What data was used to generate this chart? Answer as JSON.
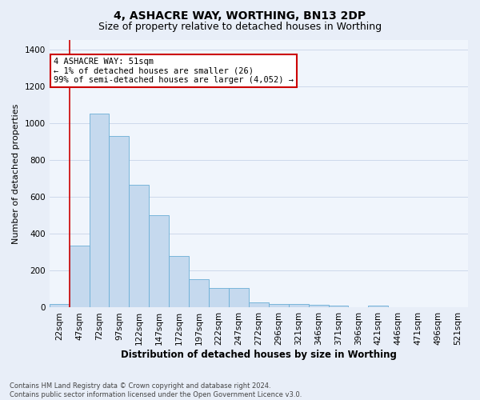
{
  "title": "4, ASHACRE WAY, WORTHING, BN13 2DP",
  "subtitle": "Size of property relative to detached houses in Worthing",
  "xlabel": "Distribution of detached houses by size in Worthing",
  "ylabel": "Number of detached properties",
  "categories": [
    "22sqm",
    "47sqm",
    "72sqm",
    "97sqm",
    "122sqm",
    "147sqm",
    "172sqm",
    "197sqm",
    "222sqm",
    "247sqm",
    "272sqm",
    "296sqm",
    "321sqm",
    "346sqm",
    "371sqm",
    "396sqm",
    "421sqm",
    "446sqm",
    "471sqm",
    "496sqm",
    "521sqm"
  ],
  "values": [
    20,
    335,
    1050,
    930,
    665,
    500,
    280,
    155,
    105,
    105,
    30,
    20,
    20,
    15,
    10,
    0,
    10,
    0,
    0,
    0,
    0
  ],
  "bar_color": "#c5d9ee",
  "bar_edge_color": "#6aaed6",
  "highlight_bar_index": 1,
  "highlight_color": "#cc0000",
  "annotation_text": "4 ASHACRE WAY: 51sqm\n← 1% of detached houses are smaller (26)\n99% of semi-detached houses are larger (4,052) →",
  "annotation_box_color": "#ffffff",
  "annotation_box_edge": "#cc0000",
  "ylim": [
    0,
    1450
  ],
  "yticks": [
    0,
    200,
    400,
    600,
    800,
    1000,
    1200,
    1400
  ],
  "bg_color": "#e8eef8",
  "plot_bg_color": "#f0f5fc",
  "grid_color": "#c8d4e8",
  "footnote": "Contains HM Land Registry data © Crown copyright and database right 2024.\nContains public sector information licensed under the Open Government Licence v3.0.",
  "title_fontsize": 10,
  "subtitle_fontsize": 9,
  "xlabel_fontsize": 8.5,
  "ylabel_fontsize": 8,
  "tick_fontsize": 7.5,
  "annot_fontsize": 7.5,
  "footnote_fontsize": 6
}
